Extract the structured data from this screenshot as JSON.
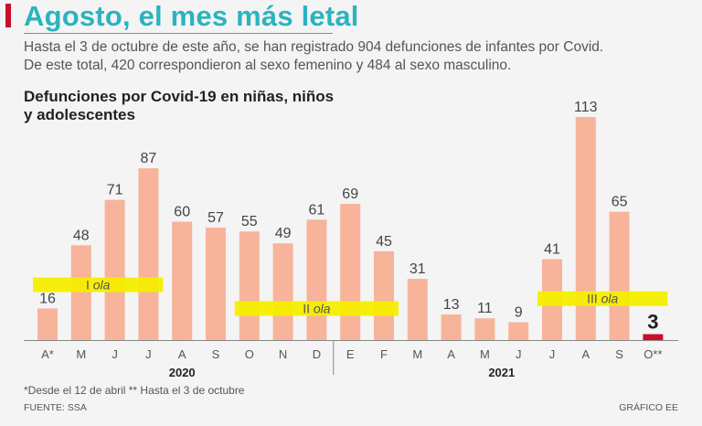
{
  "header": {
    "title": "Agosto, el mes más letal",
    "subtitle_line1": "Hasta el 3 de octubre de este año, se han registrado 904 defunciones de infantes por Covid.",
    "subtitle_line2": "De este total, 420 correspondieron al sexo femenino y 484 al sexo masculino."
  },
  "colors": {
    "accent": "#c8102e",
    "title": "#2bb3c0",
    "bar": "#f7b49a",
    "bar_highlight": "#c8102e",
    "wave_band": "#f5ee00"
  },
  "chart_data": {
    "type": "bar",
    "title_line1": "Defunciones por Covid-19 en niñas, niños",
    "title_line2": "y adolescentes",
    "categories": [
      "A*",
      "M",
      "J",
      "J",
      "A",
      "S",
      "O",
      "N",
      "D",
      "E",
      "F",
      "M",
      "A",
      "M",
      "J",
      "J",
      "A",
      "S",
      "O**"
    ],
    "values": [
      16,
      48,
      71,
      87,
      60,
      57,
      55,
      49,
      61,
      69,
      45,
      31,
      13,
      11,
      9,
      41,
      113,
      65,
      3
    ],
    "highlight_index": 18,
    "years": [
      {
        "label": "2020",
        "start_index": 0,
        "end_index": 8
      },
      {
        "label": "2021",
        "start_index": 9,
        "end_index": 18
      }
    ],
    "waves": [
      {
        "label_prefix": "I",
        "label_word": "ola",
        "start_index": 0,
        "end_index": 3,
        "level": 28
      },
      {
        "label_prefix": "II",
        "label_word": "ola",
        "start_index": 6,
        "end_index": 10,
        "level": 16
      },
      {
        "label_prefix": "III",
        "label_word": "ola",
        "start_index": 15,
        "end_index": 18,
        "level": 21
      }
    ],
    "xlabel": "",
    "ylabel": "",
    "ylim": [
      0,
      120
    ],
    "grid": false
  },
  "footer": {
    "footnote": "*Desde el 12 de abril ** Hasta el 3 de octubre",
    "source": "FUENTE: SSA",
    "credit": "GRÁFICO EE"
  }
}
